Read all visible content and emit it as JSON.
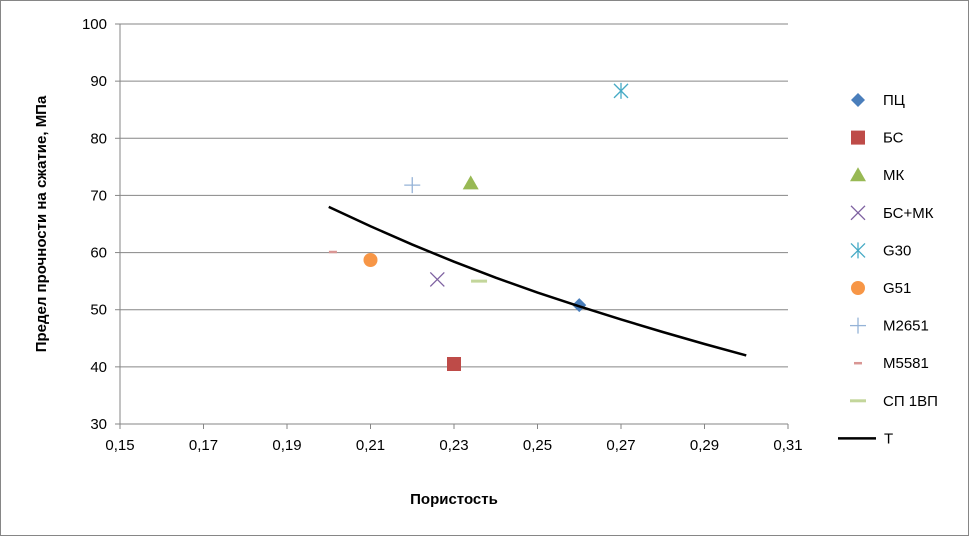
{
  "chart_data": {
    "type": "scatter",
    "title": "",
    "xlabel": "Пористость",
    "ylabel": "Предел прочности на сжатие, МПа",
    "xlim": [
      0.15,
      0.31
    ],
    "ylim": [
      30,
      100
    ],
    "x_ticks": [
      "0,15",
      "0,17",
      "0,19",
      "0,21",
      "0,23",
      "0,25",
      "0,27",
      "0,29",
      "0,31"
    ],
    "y_ticks": [
      "30",
      "40",
      "50",
      "60",
      "70",
      "80",
      "90",
      "100"
    ],
    "x_tick_values": [
      0.15,
      0.17,
      0.19,
      0.21,
      0.23,
      0.25,
      0.27,
      0.29,
      0.31
    ],
    "y_tick_values": [
      30,
      40,
      50,
      60,
      70,
      80,
      90,
      100
    ],
    "grid": "horizontal",
    "legend_position": "right",
    "series": [
      {
        "name": "ПЦ",
        "marker": "diamond",
        "color": "#4a7ebb",
        "points": [
          {
            "x": 0.26,
            "y": 50.8
          }
        ]
      },
      {
        "name": "БС",
        "marker": "square",
        "color": "#be4b48",
        "points": [
          {
            "x": 0.23,
            "y": 40.5
          }
        ]
      },
      {
        "name": "МК",
        "marker": "triangle",
        "color": "#98b954",
        "points": [
          {
            "x": 0.234,
            "y": 72.1
          }
        ]
      },
      {
        "name": "БС+МК",
        "marker": "x",
        "color": "#7d60a0",
        "points": [
          {
            "x": 0.226,
            "y": 55.3
          }
        ]
      },
      {
        "name": "G30",
        "marker": "star",
        "color": "#46aac5",
        "points": [
          {
            "x": 0.27,
            "y": 88.3
          }
        ]
      },
      {
        "name": "G51",
        "marker": "circle",
        "color": "#f79646",
        "points": [
          {
            "x": 0.21,
            "y": 58.7
          }
        ]
      },
      {
        "name": "M2651",
        "marker": "plus",
        "color": "#95b3d7",
        "points": [
          {
            "x": 0.22,
            "y": 71.8
          }
        ]
      },
      {
        "name": "M5581",
        "marker": "short-dash",
        "color": "#d99694",
        "points": [
          {
            "x": 0.201,
            "y": 60.1
          }
        ]
      },
      {
        "name": "СП 1ВП",
        "marker": "dash",
        "color": "#c3d69b",
        "points": [
          {
            "x": 0.236,
            "y": 55.0
          }
        ]
      },
      {
        "name": "T",
        "marker": "line",
        "color": "#000000",
        "points": [
          {
            "x": 0.2,
            "y": 68.0
          },
          {
            "x": 0.21,
            "y": 64.6
          },
          {
            "x": 0.22,
            "y": 61.4
          },
          {
            "x": 0.23,
            "y": 58.4
          },
          {
            "x": 0.24,
            "y": 55.6
          },
          {
            "x": 0.25,
            "y": 53.0
          },
          {
            "x": 0.26,
            "y": 50.6
          },
          {
            "x": 0.27,
            "y": 48.3
          },
          {
            "x": 0.28,
            "y": 46.1
          },
          {
            "x": 0.29,
            "y": 44.0
          },
          {
            "x": 0.3,
            "y": 42.0
          }
        ]
      }
    ]
  }
}
